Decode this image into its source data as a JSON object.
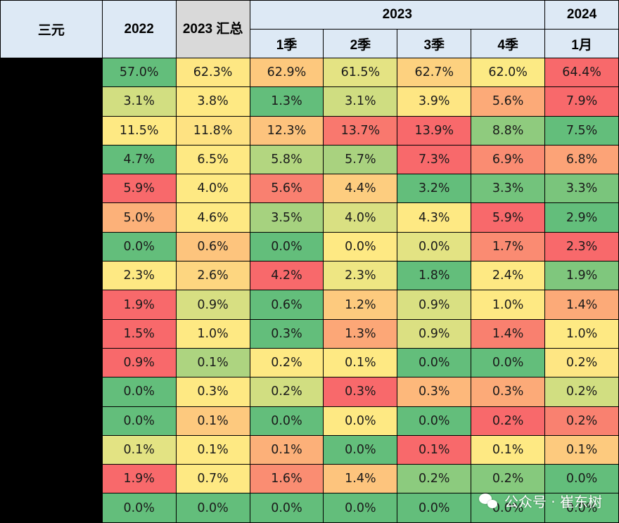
{
  "header": {
    "corner_label": "三元",
    "col_2022": "2022",
    "col_2023_total": "2023 汇总",
    "group_2023": "2023",
    "group_2024": "2024",
    "q1": "1季",
    "q2": "2季",
    "q3": "3季",
    "q4": "4季",
    "jan": "1月"
  },
  "rows": [
    {
      "cells": [
        {
          "v": "57.0%",
          "c": "#63be7b"
        },
        {
          "v": "62.3%",
          "c": "#fee783"
        },
        {
          "v": "62.9%",
          "c": "#fdc87d"
        },
        {
          "v": "61.5%",
          "c": "#e4e383"
        },
        {
          "v": "62.7%",
          "c": "#fdd17f"
        },
        {
          "v": "62.0%",
          "c": "#fcea84"
        },
        {
          "v": "64.4%",
          "c": "#f8696b"
        }
      ]
    },
    {
      "cells": [
        {
          "v": "3.1%",
          "c": "#d2de81"
        },
        {
          "v": "3.8%",
          "c": "#fee983"
        },
        {
          "v": "1.3%",
          "c": "#63be7b"
        },
        {
          "v": "3.1%",
          "c": "#cfdd81"
        },
        {
          "v": "3.9%",
          "c": "#fee683"
        },
        {
          "v": "5.6%",
          "c": "#fcaa78"
        },
        {
          "v": "7.9%",
          "c": "#f8696b"
        }
      ]
    },
    {
      "cells": [
        {
          "v": "11.5%",
          "c": "#fee983"
        },
        {
          "v": "11.8%",
          "c": "#fee282"
        },
        {
          "v": "12.3%",
          "c": "#fdc37d"
        },
        {
          "v": "13.7%",
          "c": "#f9786e"
        },
        {
          "v": "13.9%",
          "c": "#f8696b"
        },
        {
          "v": "8.8%",
          "c": "#8fcb7e"
        },
        {
          "v": "7.5%",
          "c": "#63be7b"
        }
      ]
    },
    {
      "cells": [
        {
          "v": "4.7%",
          "c": "#63be7b"
        },
        {
          "v": "6.5%",
          "c": "#fee983"
        },
        {
          "v": "5.8%",
          "c": "#b3d680"
        },
        {
          "v": "5.7%",
          "c": "#a9d27f"
        },
        {
          "v": "7.3%",
          "c": "#f8696b"
        },
        {
          "v": "6.9%",
          "c": "#fa8c72"
        },
        {
          "v": "6.8%",
          "c": "#fca377"
        }
      ]
    },
    {
      "cells": [
        {
          "v": "5.9%",
          "c": "#f8696b"
        },
        {
          "v": "4.0%",
          "c": "#fee983"
        },
        {
          "v": "5.6%",
          "c": "#f98070"
        },
        {
          "v": "4.4%",
          "c": "#fdcd7f"
        },
        {
          "v": "3.2%",
          "c": "#63be7b"
        },
        {
          "v": "3.3%",
          "c": "#73c37c"
        },
        {
          "v": "3.3%",
          "c": "#7ac57c"
        }
      ]
    },
    {
      "cells": [
        {
          "v": "5.0%",
          "c": "#fcb179"
        },
        {
          "v": "4.6%",
          "c": "#fee983"
        },
        {
          "v": "3.5%",
          "c": "#a6d27f"
        },
        {
          "v": "4.0%",
          "c": "#d9e082"
        },
        {
          "v": "4.3%",
          "c": "#fee983"
        },
        {
          "v": "5.9%",
          "c": "#f8696b"
        },
        {
          "v": "2.9%",
          "c": "#63be7b"
        }
      ]
    },
    {
      "cells": [
        {
          "v": "0.0%",
          "c": "#63be7b"
        },
        {
          "v": "0.6%",
          "c": "#fdc47d"
        },
        {
          "v": "0.0%",
          "c": "#63be7b"
        },
        {
          "v": "0.0%",
          "c": "#fee983"
        },
        {
          "v": "0.0%",
          "c": "#e3e383"
        },
        {
          "v": "1.7%",
          "c": "#fa8b72"
        },
        {
          "v": "2.3%",
          "c": "#f8696b"
        }
      ]
    },
    {
      "cells": [
        {
          "v": "2.3%",
          "c": "#fee983"
        },
        {
          "v": "2.6%",
          "c": "#fdd680"
        },
        {
          "v": "4.2%",
          "c": "#f8696b"
        },
        {
          "v": "2.3%",
          "c": "#eee683"
        },
        {
          "v": "1.8%",
          "c": "#63be7b"
        },
        {
          "v": "2.4%",
          "c": "#fee983"
        },
        {
          "v": "1.9%",
          "c": "#7fc77d"
        }
      ]
    },
    {
      "cells": [
        {
          "v": "1.9%",
          "c": "#f8696b"
        },
        {
          "v": "0.9%",
          "c": "#d7df82"
        },
        {
          "v": "0.6%",
          "c": "#63be7b"
        },
        {
          "v": "1.2%",
          "c": "#fdca7e"
        },
        {
          "v": "0.9%",
          "c": "#d9e082"
        },
        {
          "v": "1.0%",
          "c": "#fee983"
        },
        {
          "v": "1.4%",
          "c": "#fcaa78"
        }
      ]
    },
    {
      "cells": [
        {
          "v": "1.5%",
          "c": "#f8696b"
        },
        {
          "v": "1.0%",
          "c": "#fee983"
        },
        {
          "v": "0.3%",
          "c": "#63be7b"
        },
        {
          "v": "1.3%",
          "c": "#fca777"
        },
        {
          "v": "0.9%",
          "c": "#dbe082"
        },
        {
          "v": "1.4%",
          "c": "#f9806f"
        },
        {
          "v": "1.0%",
          "c": "#fee983"
        }
      ]
    },
    {
      "cells": [
        {
          "v": "0.9%",
          "c": "#f8696b"
        },
        {
          "v": "0.1%",
          "c": "#add480"
        },
        {
          "v": "0.2%",
          "c": "#fee983"
        },
        {
          "v": "0.1%",
          "c": "#fee983"
        },
        {
          "v": "0.0%",
          "c": "#63be7b"
        },
        {
          "v": "0.0%",
          "c": "#63be7b"
        },
        {
          "v": "0.2%",
          "c": "#fee683"
        }
      ]
    },
    {
      "cells": [
        {
          "v": "0.0%",
          "c": "#63be7b"
        },
        {
          "v": "0.3%",
          "c": "#fee983"
        },
        {
          "v": "0.2%",
          "c": "#d1de81"
        },
        {
          "v": "0.3%",
          "c": "#f8696b"
        },
        {
          "v": "0.3%",
          "c": "#fdb87b"
        },
        {
          "v": "0.3%",
          "c": "#fcaa78"
        },
        {
          "v": "0.2%",
          "c": "#d1de81"
        }
      ]
    },
    {
      "cells": [
        {
          "v": "0.0%",
          "c": "#63be7b"
        },
        {
          "v": "0.1%",
          "c": "#fdc97e"
        },
        {
          "v": "0.0%",
          "c": "#63be7b"
        },
        {
          "v": "0.0%",
          "c": "#fee983"
        },
        {
          "v": "0.0%",
          "c": "#63be7b"
        },
        {
          "v": "0.2%",
          "c": "#f8696b"
        },
        {
          "v": "0.2%",
          "c": "#f98170"
        }
      ]
    },
    {
      "cells": [
        {
          "v": "0.1%",
          "c": "#e3e383"
        },
        {
          "v": "0.1%",
          "c": "#fee983"
        },
        {
          "v": "0.1%",
          "c": "#fcb079"
        },
        {
          "v": "0.0%",
          "c": "#63be7b"
        },
        {
          "v": "0.1%",
          "c": "#f8696b"
        },
        {
          "v": "0.1%",
          "c": "#fee983"
        },
        {
          "v": "0.1%",
          "c": "#fdca7e"
        }
      ]
    },
    {
      "cells": [
        {
          "v": "1.9%",
          "c": "#f8696b"
        },
        {
          "v": "0.7%",
          "c": "#fee983"
        },
        {
          "v": "1.6%",
          "c": "#fa8d72"
        },
        {
          "v": "1.4%",
          "c": "#fdc47d"
        },
        {
          "v": "0.2%",
          "c": "#8ccb7e"
        },
        {
          "v": "0.2%",
          "c": "#86c97d"
        },
        {
          "v": "0.0%",
          "c": "#63be7b"
        }
      ]
    },
    {
      "cells": [
        {
          "v": "0.0%",
          "c": "#63be7b"
        },
        {
          "v": "0.0%",
          "c": "#63be7b"
        },
        {
          "v": "0.0%",
          "c": "#63be7b"
        },
        {
          "v": "0.0%",
          "c": "#63be7b"
        },
        {
          "v": "0.0%",
          "c": "#63be7b"
        },
        {
          "v": "0.0%",
          "c": "#63be7b"
        },
        {
          "v": "0.0%",
          "c": "#63be7b"
        }
      ]
    }
  ],
  "watermark": {
    "icon": "wechat-icon",
    "text": "公众号 · 崔东树"
  }
}
